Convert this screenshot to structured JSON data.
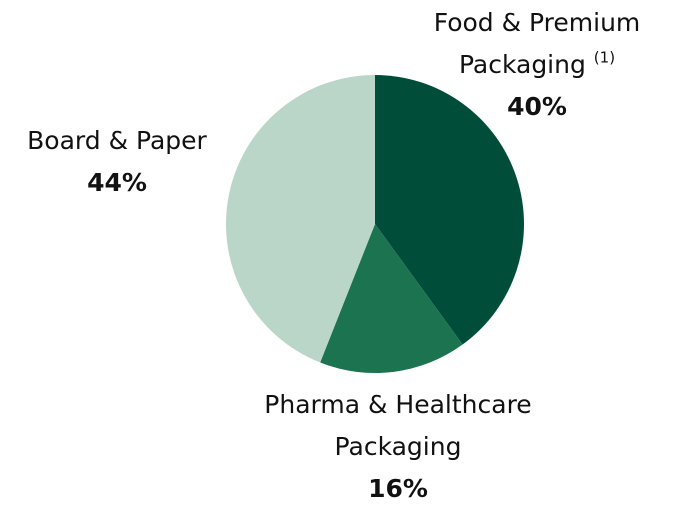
{
  "chart_data": {
    "type": "pie",
    "categories": [
      "Food & Premium Packaging",
      "Pharma & Healthcare Packaging",
      "Board & Paper"
    ],
    "footnote_markers": [
      "(1)",
      null,
      null
    ],
    "values": [
      40,
      16,
      44
    ],
    "value_labels": [
      "40%",
      "16%",
      "44%"
    ],
    "colors": [
      "#004d3a",
      "#1b7350",
      "#b9d6c8"
    ]
  }
}
